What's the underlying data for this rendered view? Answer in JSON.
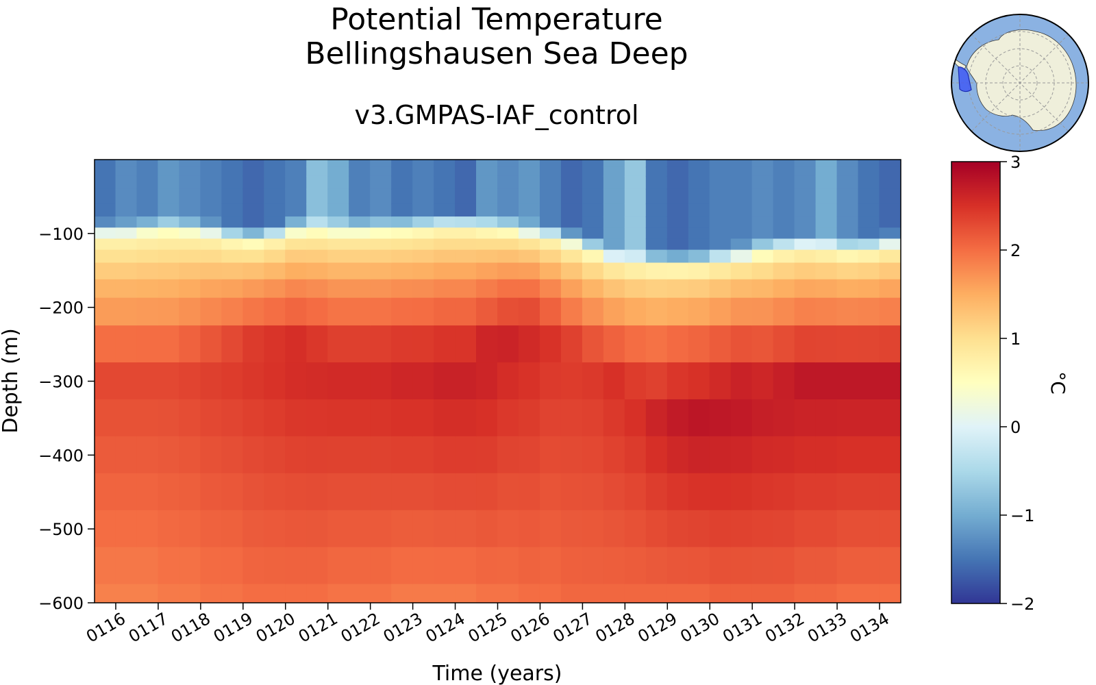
{
  "chart_data": {
    "type": "heatmap",
    "title": [
      "Potential Temperature",
      "Bellingshausen Sea Deep"
    ],
    "subtitle": "v3.GMPAS-IAF_control",
    "xlabel": "Time (years)",
    "ylabel": "Depth (m)",
    "colorbar_label": "°C",
    "colormap": "RdYlBu_r",
    "x_ticks": [
      "0116",
      "0117",
      "0118",
      "0119",
      "0120",
      "0121",
      "0122",
      "0123",
      "0124",
      "0125",
      "0126",
      "0127",
      "0128",
      "0129",
      "0130",
      "0131",
      "0132",
      "0133",
      "0134"
    ],
    "x_range": [
      115.5,
      134.5
    ],
    "y_ticks": [
      -100,
      -200,
      -300,
      -400,
      -500,
      -600
    ],
    "y_tick_labels": [
      "−100",
      "−200",
      "−300",
      "−400",
      "−500",
      "−600"
    ],
    "y_range": [
      -600,
      0
    ],
    "colorbar_ticks": [
      3,
      2,
      1,
      0,
      -1,
      -2
    ],
    "colorbar_tick_labels": [
      "3",
      "2",
      "1",
      "0",
      "−1",
      "−2"
    ],
    "color_range": [
      -2,
      3
    ],
    "depths": [
      -5,
      -15,
      -30,
      -50,
      -70,
      -85,
      -100,
      -115,
      -130,
      -150,
      -175,
      -200,
      -250,
      -300,
      -350,
      -400,
      -450,
      -500,
      -550,
      -600
    ],
    "times": [
      115.75,
      116.25,
      116.75,
      117.25,
      117.75,
      118.25,
      118.75,
      119.25,
      119.75,
      120.25,
      120.75,
      121.25,
      121.75,
      122.25,
      122.75,
      123.25,
      123.75,
      124.25,
      124.75,
      125.25,
      125.75,
      126.25,
      126.75,
      127.25,
      127.75,
      128.25,
      128.75,
      129.25,
      129.75,
      130.25,
      130.75,
      131.25,
      131.75,
      132.25,
      132.75,
      133.25,
      133.75,
      134.25
    ],
    "thermocline_depth": [
      -95,
      -95,
      -92,
      -90,
      -92,
      -95,
      -102,
      -105,
      -100,
      -92,
      -90,
      -92,
      -92,
      -91,
      -90,
      -88,
      -85,
      -85,
      -88,
      -90,
      -95,
      -100,
      -108,
      -118,
      -128,
      -132,
      -135,
      -136,
      -135,
      -130,
      -125,
      -120,
      -115,
      -112,
      -114,
      -118,
      -116,
      -110
    ],
    "surface_temp": [
      -1.5,
      -1.3,
      -1.4,
      -1.2,
      -1.3,
      -1.4,
      -1.5,
      -1.6,
      -1.5,
      -1.4,
      -0.8,
      -1.0,
      -1.4,
      -1.3,
      -1.5,
      -1.4,
      -1.5,
      -1.6,
      -1.2,
      -1.3,
      -1.2,
      -1.4,
      -1.6,
      -1.5,
      -1.1,
      -0.7,
      -1.5,
      -1.6,
      -1.5,
      -1.4,
      -1.4,
      -1.3,
      -1.4,
      -1.3,
      -1.0,
      -1.3,
      -1.5,
      -1.6
    ],
    "core_temp": [
      2.3,
      2.3,
      2.3,
      2.3,
      2.35,
      2.4,
      2.45,
      2.5,
      2.55,
      2.6,
      2.6,
      2.6,
      2.6,
      2.6,
      2.65,
      2.65,
      2.7,
      2.7,
      2.7,
      2.65,
      2.6,
      2.5,
      2.45,
      2.45,
      2.5,
      2.55,
      2.65,
      2.75,
      2.8,
      2.8,
      2.8,
      2.75,
      2.75,
      2.75,
      2.75,
      2.75,
      2.75,
      2.75
    ],
    "core_depth": [
      -300,
      -300,
      -300,
      -300,
      -290,
      -280,
      -270,
      -260,
      -260,
      -260,
      -270,
      -280,
      -280,
      -280,
      -280,
      -280,
      -280,
      -280,
      -260,
      -240,
      -230,
      -240,
      -260,
      -280,
      -300,
      -320,
      -340,
      -340,
      -340,
      -330,
      -320,
      -320,
      -310,
      -300,
      -300,
      -300,
      -300,
      -300
    ],
    "bottom_temp": [
      1.85,
      1.85,
      1.85,
      1.9,
      1.9,
      1.95,
      1.95,
      2.0,
      2.0,
      2.0,
      2.0,
      1.95,
      1.95,
      1.95,
      1.9,
      1.9,
      1.9,
      1.9,
      1.95,
      1.95,
      2.0,
      2.0,
      2.05,
      2.05,
      2.05,
      2.05,
      2.05,
      2.05,
      2.05,
      2.1,
      2.1,
      2.1,
      2.1,
      2.05,
      2.05,
      2.0,
      2.0,
      2.0
    ]
  },
  "inset_map": {
    "region": "Bellingshausen Sea",
    "projection": "south-polar-stereographic",
    "colors": {
      "ocean": "#8bb2e2",
      "land": "#efefdb",
      "region": "#3c55f5",
      "grid": "#9a9a9a"
    }
  }
}
